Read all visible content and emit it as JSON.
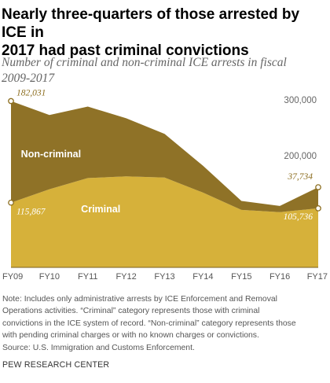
{
  "title_lines": [
    "Nearly three-quarters of those arrested by ICE in",
    "2017 had past criminal convictions"
  ],
  "subtitle_lines": [
    "Number of criminal and non-criminal ICE arrests in fiscal",
    "2009-2017"
  ],
  "note_lines": [
    "Note: Includes only administrative arrests by ICE Enforcement and Removal",
    "Operations activities. “Criminal” category represents those with criminal",
    "convictions in the ICE system of record. “Non-criminal” category represents those",
    "with pending criminal charges or with no known charges or convictions.",
    "Source: U.S. Immigration and Customs Enforcement."
  ],
  "credit": "PEW RESEARCH CENTER",
  "colors": {
    "criminal": "#d6b13a",
    "non_criminal": "#8f7227",
    "label_value": "#8c6d1f",
    "axis_label": "#666666"
  },
  "chart_data": {
    "type": "area",
    "stacked": true,
    "categories": [
      "FY09",
      "FY10",
      "FY11",
      "FY12",
      "FY13",
      "FY14",
      "FY15",
      "FY16",
      "FY17"
    ],
    "series": [
      {
        "name": "Criminal",
        "values": [
          115867,
          140000,
          160000,
          163000,
          161000,
          134000,
          103000,
          99000,
          105736
        ]
      },
      {
        "name": "Non-criminal",
        "values": [
          182031,
          133000,
          128000,
          104000,
          78000,
          48000,
          16000,
          11000,
          37734
        ]
      }
    ],
    "yticks": [
      {
        "value": 200000,
        "label": "200,000"
      },
      {
        "value": 300000,
        "label": "300,000"
      }
    ],
    "ylim": [
      0,
      320000
    ],
    "grid": false,
    "annotations": [
      {
        "label": "182,031",
        "category": "FY09",
        "value": 297898,
        "type": "total"
      },
      {
        "label": "115,867",
        "category": "FY09",
        "value": 115867,
        "type": "criminal"
      },
      {
        "label": "37,734",
        "category": "FY17",
        "value": 143470,
        "type": "total"
      },
      {
        "label": "105,736",
        "category": "FY17",
        "value": 105736,
        "type": "criminal"
      }
    ]
  }
}
